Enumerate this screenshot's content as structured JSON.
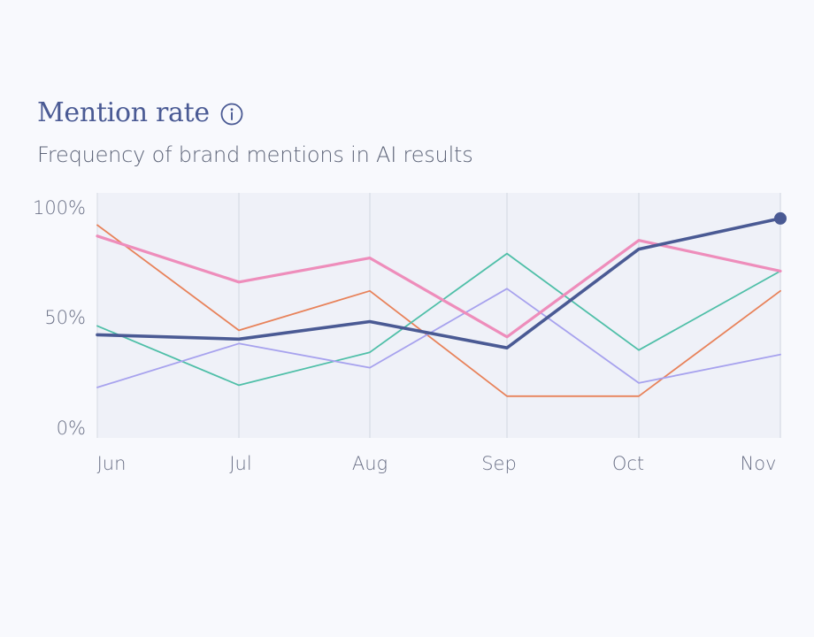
{
  "header": {
    "title": "Mention rate",
    "info_icon": "info-circle-icon",
    "subtitle": "Frequency of brand mentions in AI results"
  },
  "chart_data": {
    "type": "line",
    "categories": [
      "Jun",
      "Jul",
      "Aug",
      "Sep",
      "Oct",
      "Nov"
    ],
    "y_ticks": [
      "0%",
      "50%",
      "100%"
    ],
    "ylim": [
      0,
      100
    ],
    "grid": "vertical",
    "series": [
      {
        "color": "#e8825a",
        "values": [
          93,
          45,
          63,
          15,
          15,
          63
        ]
      },
      {
        "color": "#4fbfa8",
        "values": [
          47,
          20,
          35,
          80,
          36,
          72
        ]
      },
      {
        "color": "#a7a2ee",
        "values": [
          19,
          39,
          28,
          64,
          21,
          34
        ]
      },
      {
        "color": "#ee8dbb",
        "values": [
          88,
          67,
          78,
          42,
          86,
          72
        ]
      },
      {
        "color": "#4a5a94",
        "values": [
          43,
          41,
          49,
          37,
          82,
          96
        ],
        "emphasis": true,
        "end_marker": true
      }
    ]
  }
}
